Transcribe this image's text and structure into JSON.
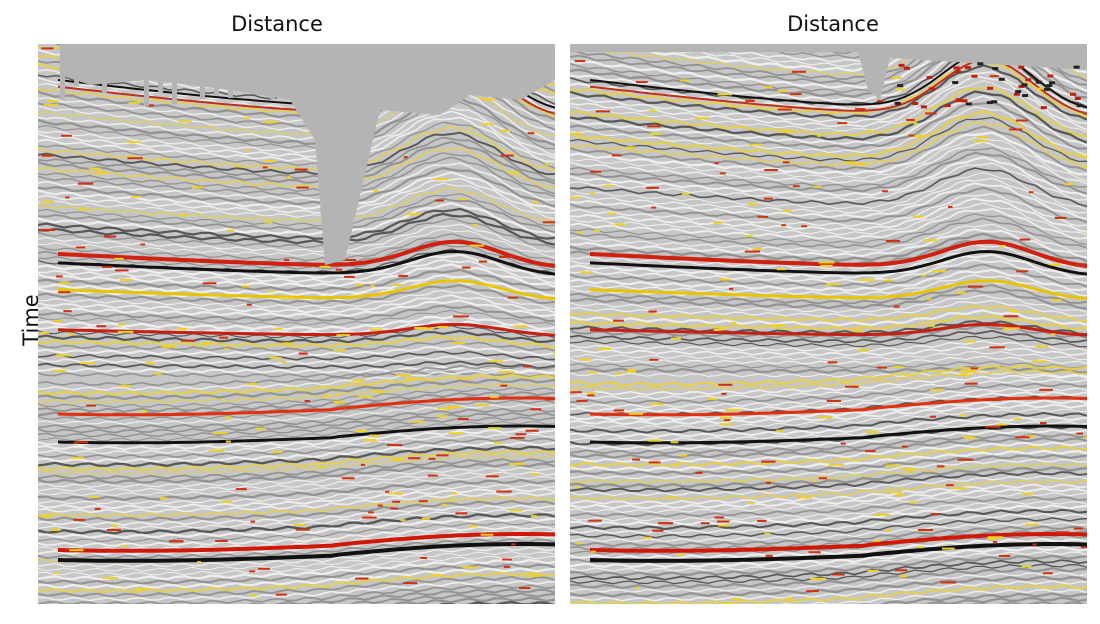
{
  "panels": [
    {
      "title": "Distance"
    },
    {
      "title": "Distance"
    }
  ],
  "y_axis_label": "Time"
}
